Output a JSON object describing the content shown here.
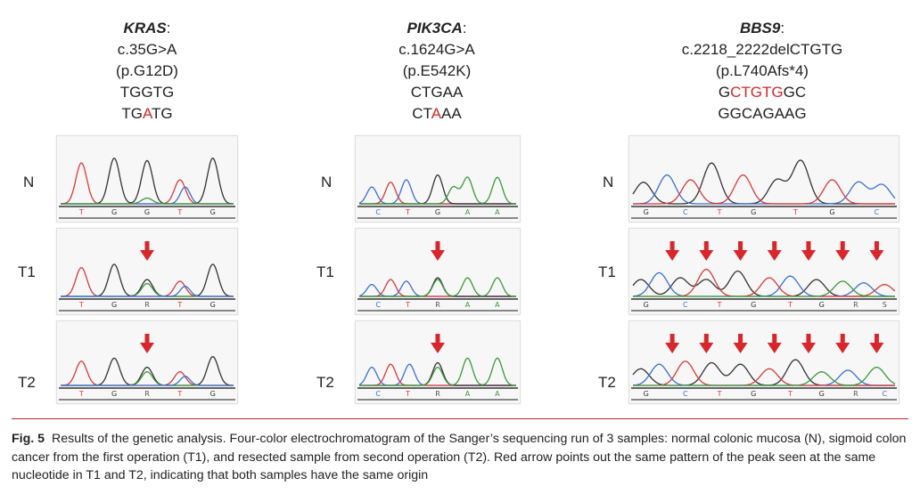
{
  "headers": [
    {
      "gene": "KRAS",
      "suffix": ":",
      "lines": [
        "c.35G>A",
        "(p.G12D)",
        "TGGTG"
      ],
      "mutant": [
        {
          "t": "TG",
          "red": false
        },
        {
          "t": "A",
          "red": true
        },
        {
          "t": "TG",
          "red": false
        }
      ]
    },
    {
      "gene": "PIK3CA",
      "suffix": ":",
      "lines": [
        "c.1624G>A",
        "(p.E542K)",
        "CTGAA"
      ],
      "mutant": [
        {
          "t": "CT",
          "red": false
        },
        {
          "t": "A",
          "red": true
        },
        {
          "t": "AA",
          "red": false
        }
      ]
    },
    {
      "gene": "BBS9",
      "suffix": ":",
      "lines": [
        "c.2218_2222delCTGTG",
        "(p.L740Afs*4)"
      ],
      "highlight": [
        {
          "t": "G",
          "red": false
        },
        {
          "t": "CTGTG",
          "red": true
        },
        {
          "t": "GC",
          "red": false
        }
      ],
      "mutant_plain": "GGCAGAAG"
    }
  ],
  "row_labels": [
    "N",
    "T1",
    "T2"
  ],
  "base_labels": {
    "kras": {
      "N": [
        "T",
        "G",
        "G",
        "T",
        "G"
      ],
      "T1": [
        "T",
        "G",
        "R",
        "T",
        "G"
      ],
      "T2": [
        "T",
        "G",
        "R",
        "T",
        "G"
      ]
    },
    "pik3ca": {
      "N": [
        "C",
        "T",
        "G",
        "A",
        "A"
      ],
      "T1": [
        "C",
        "T",
        "R",
        "A",
        "A"
      ],
      "T2": [
        "C",
        "T",
        "R",
        "A",
        "A"
      ]
    },
    "bbs9": {
      "N": [
        "G",
        "C",
        "T",
        "G",
        "T",
        "G",
        "C"
      ],
      "T1": [
        "G",
        "C",
        "T",
        "G",
        "T",
        "G",
        "R",
        "S"
      ],
      "T2": [
        "G",
        "C",
        "T",
        "G",
        "T",
        "G",
        "R",
        "C"
      ]
    }
  },
  "arrow_color": "#d8262b",
  "base_colors": {
    "A": "#3a9a3a",
    "C": "#3a6fd8",
    "G": "#333333",
    "T": "#d83a3a"
  },
  "caption": {
    "fig_label": "Fig. 5",
    "text": "Results of the genetic analysis. Four-color electrochromatogram of the Sanger’s sequencing run of 3 samples: normal colonic mucosa (N), sigmoid colon cancer from the first operation (T1), and resected sample from second operation (T2). Red arrow points out the same pattern of the peak seen at the same nucleotide in T1 and T2, indicating that both samples have the same origin"
  }
}
